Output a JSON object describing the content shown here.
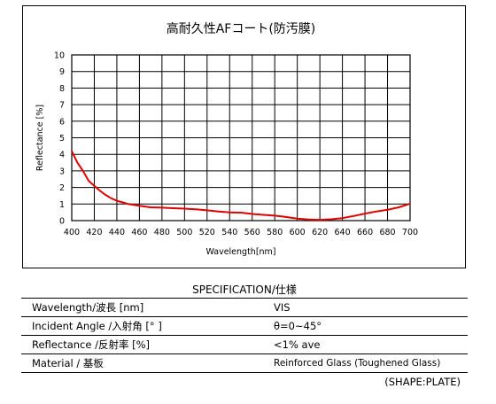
{
  "chart_data": {
    "type": "line",
    "title": "高耐久性AFコート(防汚膜)",
    "xlabel": "Wavelength[nm]",
    "ylabel": "Reflectance [%]",
    "xlim": [
      400,
      700
    ],
    "ylim": [
      0,
      10
    ],
    "xticks": [
      400,
      420,
      440,
      460,
      480,
      500,
      520,
      540,
      560,
      580,
      600,
      620,
      640,
      660,
      680,
      700
    ],
    "yticks": [
      0,
      1,
      2,
      3,
      4,
      5,
      6,
      7,
      8,
      9,
      10
    ],
    "grid": true,
    "series": [
      {
        "color": "#e00000",
        "x": [
          400,
          405,
          410,
          415,
          420,
          425,
          430,
          435,
          440,
          445,
          450,
          455,
          460,
          470,
          480,
          490,
          500,
          510,
          520,
          530,
          540,
          550,
          560,
          570,
          580,
          590,
          600,
          610,
          620,
          630,
          640,
          650,
          660,
          670,
          680,
          690,
          700
        ],
        "y": [
          4.2,
          3.5,
          3.0,
          2.4,
          2.1,
          1.8,
          1.55,
          1.35,
          1.2,
          1.1,
          1.0,
          0.95,
          0.9,
          0.8,
          0.78,
          0.75,
          0.72,
          0.68,
          0.62,
          0.55,
          0.5,
          0.48,
          0.4,
          0.35,
          0.3,
          0.22,
          0.12,
          0.07,
          0.05,
          0.08,
          0.15,
          0.28,
          0.42,
          0.55,
          0.65,
          0.8,
          1.02
        ]
      }
    ]
  },
  "spec": {
    "title": "SPECIFICATION/仕様",
    "rows": [
      {
        "label": "Wavelength/波長 [nm]",
        "value": "VIS"
      },
      {
        "label": "Incident Angle /入射角 [° ]",
        "value": "θ=0~45°"
      },
      {
        "label": "Reflectance /反射率 [%]",
        "value": "<1% ave"
      },
      {
        "label": "Material / 基板",
        "value": "Reinforced Glass (Toughened Glass)"
      }
    ],
    "shape_note": "(SHAPE:PLATE)"
  }
}
